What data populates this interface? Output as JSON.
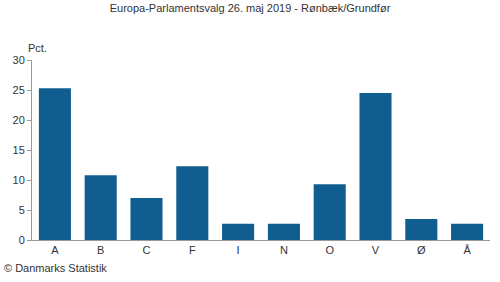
{
  "chart_data": {
    "type": "bar",
    "title": "Europa-Parlamentsvalg 26. maj 2019 - Rønbæk/Grundfør",
    "ylabel": "Pct.",
    "annotations": [
      "© Danmarks Statistik"
    ],
    "categories": [
      "A",
      "B",
      "C",
      "F",
      "I",
      "N",
      "O",
      "V",
      "Ø",
      "Å"
    ],
    "values": [
      25.3,
      10.8,
      7.0,
      12.3,
      2.7,
      2.7,
      9.3,
      24.5,
      3.5,
      2.7
    ],
    "color": "#0f5e8f",
    "ylim": [
      0,
      30
    ],
    "yticks": [
      0,
      5,
      10,
      15,
      20,
      25,
      30
    ],
    "grid": false
  }
}
